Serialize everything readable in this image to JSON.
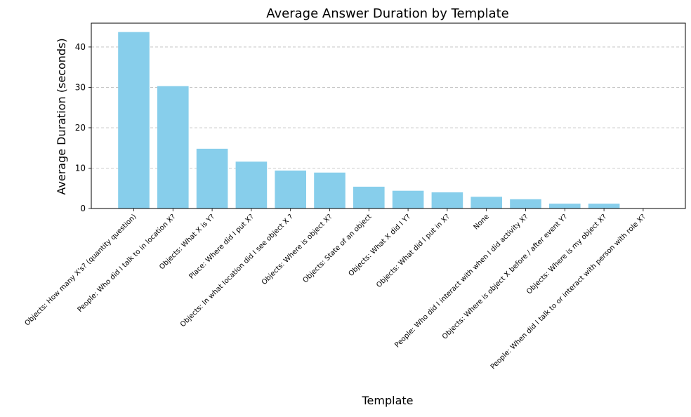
{
  "chart_data": {
    "type": "bar",
    "title": "Average Answer Duration by Template",
    "xlabel": "Template",
    "ylabel": "Average Duration (seconds)",
    "categories": [
      "Objects: How many X's? (quantity question)",
      "People: Who did I talk to in location X?",
      "Objects: What X is Y?",
      "Place: Where did I put X?",
      "Objects: In what location did I see object X ?",
      "Objects: Where is object X?",
      "Objects: State of an object",
      "Objects: What X did I Y?",
      "Objects: What did I put in X?",
      "None",
      "People: Who did I interact with when I did activity X?",
      "Objects: Where is object X before / after event Y?",
      "Objects: Where is my object X?",
      "People: When did I talk to or interact with person with role X?"
    ],
    "values": [
      43.7,
      30.3,
      14.8,
      11.6,
      9.4,
      8.9,
      5.4,
      4.4,
      4.0,
      2.9,
      2.3,
      1.2,
      1.2,
      0
    ],
    "ylim": [
      0,
      45.9
    ],
    "yticks": [
      0,
      10,
      20,
      30,
      40
    ],
    "grid": "y-dashed",
    "bar_color": "#87ceeb"
  }
}
